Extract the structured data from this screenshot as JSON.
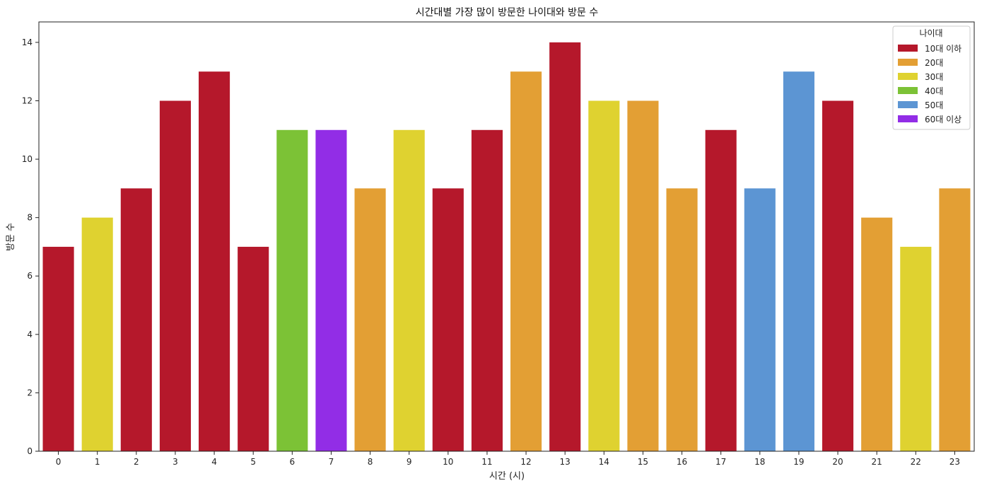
{
  "chart_data": {
    "type": "bar",
    "title": "시간대별 가장 많이 방문한 나이대와 방문 수",
    "xlabel": "시간 (시)",
    "ylabel": "방문 수",
    "ylim": [
      0,
      14.7
    ],
    "yticks": [
      0,
      2,
      4,
      6,
      8,
      10,
      12,
      14
    ],
    "categories": [
      "0",
      "1",
      "2",
      "3",
      "4",
      "5",
      "6",
      "7",
      "8",
      "9",
      "10",
      "11",
      "12",
      "13",
      "14",
      "15",
      "16",
      "17",
      "18",
      "19",
      "20",
      "21",
      "22",
      "23"
    ],
    "values": [
      7,
      8,
      9,
      12,
      13,
      7,
      11,
      11,
      9,
      11,
      9,
      11,
      13,
      14,
      12,
      12,
      9,
      11,
      9,
      13,
      12,
      8,
      7,
      9
    ],
    "groups": [
      "10대 이하",
      "30대",
      "10대 이하",
      "10대 이하",
      "10대 이하",
      "10대 이하",
      "40대",
      "60대 이상",
      "20대",
      "30대",
      "10대 이하",
      "10대 이하",
      "20대",
      "10대 이하",
      "30대",
      "20대",
      "20대",
      "10대 이하",
      "50대",
      "50대",
      "10대 이하",
      "20대",
      "30대",
      "20대"
    ],
    "legend": {
      "title": "나이대",
      "placement": "top-right",
      "entries": [
        {
          "name": "10대 이하",
          "color": "#b5182b"
        },
        {
          "name": "20대",
          "color": "#e39f34"
        },
        {
          "name": "30대",
          "color": "#dfd230"
        },
        {
          "name": "40대",
          "color": "#7cc236"
        },
        {
          "name": "50대",
          "color": "#5c95d3"
        },
        {
          "name": "60대 이상",
          "color": "#922de6"
        }
      ]
    },
    "grid": false
  }
}
